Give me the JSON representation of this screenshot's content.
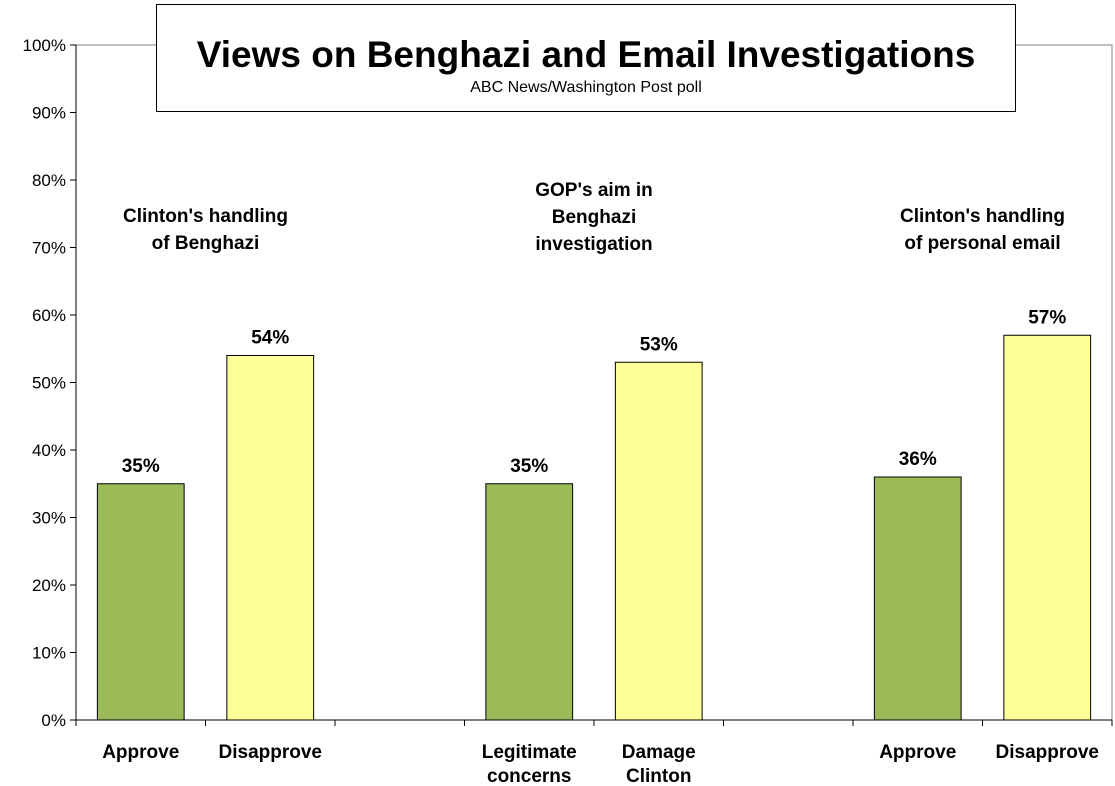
{
  "chart_data": {
    "type": "bar",
    "title": "Views on Benghazi and Email Investigations",
    "subtitle": "ABC News/Washington Post poll",
    "ylim": [
      0,
      100
    ],
    "yticks": [
      "0%",
      "10%",
      "20%",
      "30%",
      "40%",
      "50%",
      "60%",
      "70%",
      "80%",
      "90%",
      "100%"
    ],
    "groups": [
      {
        "label": [
          "Clinton's handling",
          "of Benghazi"
        ],
        "bars": [
          {
            "category": [
              "Approve"
            ],
            "value": 35,
            "value_label": "35%",
            "color": "#9bbb59"
          },
          {
            "category": [
              "Disapprove"
            ],
            "value": 54,
            "value_label": "54%",
            "color": "#ffff99"
          }
        ]
      },
      {
        "label": [
          "GOP's aim in",
          "Benghazi",
          "investigation"
        ],
        "bars": [
          {
            "category": [
              "Legitimate",
              "concerns"
            ],
            "value": 35,
            "value_label": "35%",
            "color": "#9bbb59"
          },
          {
            "category": [
              "Damage",
              "Clinton"
            ],
            "value": 53,
            "value_label": "53%",
            "color": "#ffff99"
          }
        ]
      },
      {
        "label": [
          "Clinton's handling",
          "of personal email"
        ],
        "bars": [
          {
            "category": [
              "Approve"
            ],
            "value": 36,
            "value_label": "36%",
            "color": "#9bbb59"
          },
          {
            "category": [
              "Disapprove"
            ],
            "value": 57,
            "value_label": "57%",
            "color": "#ffff99"
          }
        ]
      }
    ],
    "grid": false,
    "legend": "none"
  }
}
